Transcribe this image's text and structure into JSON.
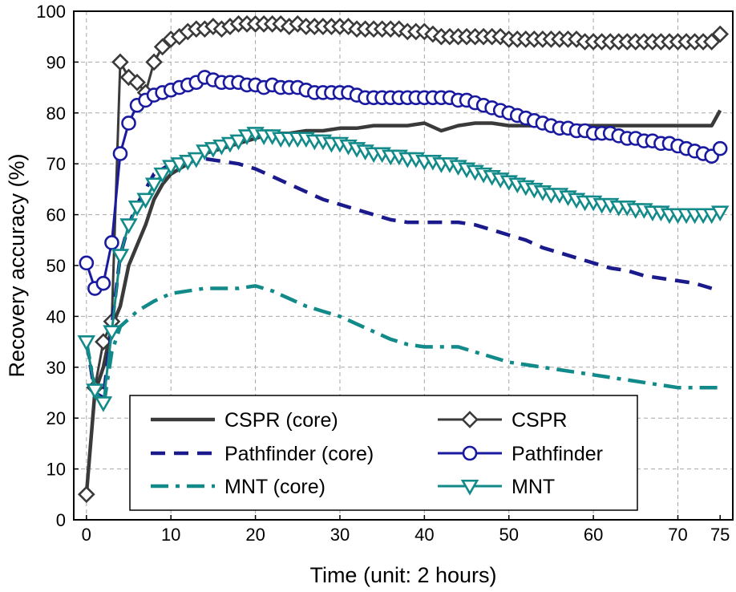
{
  "chart_data": {
    "type": "line",
    "title": "",
    "xlabel": "Time (unit: 2 hours)",
    "ylabel": "Recovery accuracy (%)",
    "xlim": [
      -1.5,
      76.5
    ],
    "ylim": [
      0,
      100
    ],
    "xticks": [
      0,
      10,
      20,
      30,
      40,
      50,
      60,
      70,
      75
    ],
    "yticks": [
      0,
      10,
      20,
      30,
      40,
      50,
      60,
      70,
      80,
      90,
      100
    ],
    "grid": true,
    "legend_position": "bottom-center",
    "series": [
      {
        "name": "CSPR (core)",
        "color": "#3a3a3a",
        "style": "solid",
        "marker": "none",
        "x": [
          0,
          1,
          2,
          3,
          4,
          5,
          6,
          7,
          8,
          9,
          10,
          12,
          14,
          16,
          18,
          20,
          22,
          24,
          26,
          28,
          30,
          32,
          34,
          36,
          38,
          40,
          42,
          44,
          46,
          48,
          50,
          52,
          54,
          56,
          58,
          60,
          62,
          64,
          66,
          68,
          70,
          72,
          74,
          75
        ],
        "y": [
          5,
          25,
          30,
          38,
          42,
          50,
          54,
          58,
          63,
          66,
          68,
          70,
          72,
          73,
          74,
          75,
          76,
          76,
          76.5,
          76.5,
          77,
          77,
          77.5,
          77.5,
          77.5,
          78,
          76.5,
          77.5,
          78,
          78,
          77.5,
          77.5,
          77.5,
          77.5,
          77.5,
          77.5,
          77.5,
          77.5,
          77.5,
          77.5,
          77.5,
          77.5,
          77.5,
          80.5
        ]
      },
      {
        "name": "CSPR",
        "color": "#3a3a3a",
        "style": "solid",
        "marker": "diamond",
        "x": [
          0,
          1,
          2,
          3,
          4,
          5,
          6,
          7,
          8,
          9,
          10,
          11,
          12,
          13,
          14,
          15,
          16,
          17,
          18,
          19,
          20,
          21,
          22,
          23,
          24,
          25,
          26,
          27,
          28,
          29,
          30,
          31,
          32,
          33,
          34,
          35,
          36,
          37,
          38,
          39,
          40,
          41,
          42,
          43,
          44,
          45,
          46,
          47,
          48,
          49,
          50,
          51,
          52,
          53,
          54,
          55,
          56,
          57,
          58,
          59,
          60,
          61,
          62,
          63,
          64,
          65,
          66,
          67,
          68,
          69,
          70,
          71,
          72,
          73,
          74,
          75
        ],
        "y": [
          5,
          26,
          35,
          39,
          90,
          87,
          86,
          84,
          90,
          93,
          94.5,
          95,
          96,
          96.5,
          96.5,
          97,
          96.5,
          97,
          97.5,
          97.5,
          97.5,
          97.5,
          97.5,
          97.5,
          97,
          97.5,
          97,
          97,
          97,
          97,
          97,
          97,
          96.5,
          96.5,
          96.5,
          96.5,
          96.5,
          96.5,
          96,
          96,
          96,
          95.5,
          95,
          95,
          95,
          95,
          95,
          95,
          95,
          95,
          94.5,
          94.5,
          94.5,
          94.5,
          94.5,
          94.5,
          94.5,
          94.5,
          94.5,
          94,
          94,
          94,
          94,
          94,
          94,
          94,
          94,
          94,
          94,
          94,
          94,
          94,
          94,
          94,
          94,
          95.5
        ]
      },
      {
        "name": "Pathfinder (core)",
        "color": "#1a1a8c",
        "style": "dashed",
        "marker": "none",
        "x": [
          0,
          1,
          2,
          3,
          4,
          5,
          6,
          7,
          8,
          9,
          10,
          12,
          14,
          16,
          18,
          20,
          22,
          24,
          26,
          28,
          30,
          32,
          34,
          36,
          38,
          40,
          42,
          44,
          46,
          48,
          50,
          52,
          54,
          56,
          58,
          60,
          62,
          64,
          66,
          68,
          70,
          72,
          74,
          75
        ],
        "y": [
          35,
          25,
          24,
          38,
          52,
          58,
          62,
          65,
          68,
          69,
          70,
          71,
          71,
          70.5,
          70,
          69,
          67.5,
          66,
          64.5,
          63,
          62,
          61,
          60,
          59,
          58.5,
          58.5,
          58.5,
          58.5,
          58,
          57,
          56,
          55,
          53.5,
          52.5,
          51.5,
          50.5,
          49.5,
          49,
          48,
          47.5,
          47,
          46.5,
          45.5,
          45
        ]
      },
      {
        "name": "Pathfinder",
        "color": "#1a1aa0",
        "style": "solid",
        "marker": "circle",
        "x": [
          0,
          1,
          2,
          3,
          4,
          5,
          6,
          7,
          8,
          9,
          10,
          11,
          12,
          13,
          14,
          15,
          16,
          17,
          18,
          19,
          20,
          21,
          22,
          23,
          24,
          25,
          26,
          27,
          28,
          29,
          30,
          31,
          32,
          33,
          34,
          35,
          36,
          37,
          38,
          39,
          40,
          41,
          42,
          43,
          44,
          45,
          46,
          47,
          48,
          49,
          50,
          51,
          52,
          53,
          54,
          55,
          56,
          57,
          58,
          59,
          60,
          61,
          62,
          63,
          64,
          65,
          66,
          67,
          68,
          69,
          70,
          71,
          72,
          73,
          74,
          75
        ],
        "y": [
          50.5,
          45.5,
          46.5,
          54.5,
          72,
          78,
          81.5,
          82.5,
          83.5,
          84,
          84.5,
          85,
          85.5,
          86,
          87,
          86.5,
          86,
          86,
          86,
          85.5,
          85.5,
          85,
          85.5,
          85,
          85,
          85,
          84.5,
          84,
          84,
          84,
          84,
          84,
          83.5,
          83,
          83,
          83,
          83,
          83,
          83,
          83,
          83,
          83,
          83,
          83,
          82.5,
          82.5,
          82,
          81.5,
          81,
          80.5,
          80,
          79.5,
          79,
          78.5,
          78,
          77.5,
          77,
          77,
          76.5,
          76.5,
          76,
          76,
          76,
          75.5,
          75,
          75,
          74.5,
          74.5,
          74,
          74,
          73.5,
          73,
          72.5,
          72,
          71.5,
          73
        ]
      },
      {
        "name": "MNT (core)",
        "color": "#138a8a",
        "style": "dashdot",
        "marker": "none",
        "x": [
          0,
          1,
          2,
          3,
          4,
          6,
          8,
          10,
          12,
          14,
          16,
          18,
          20,
          22,
          24,
          26,
          28,
          30,
          32,
          34,
          36,
          38,
          40,
          42,
          44,
          46,
          48,
          50,
          52,
          54,
          56,
          58,
          60,
          62,
          64,
          66,
          68,
          70,
          72,
          74,
          75
        ],
        "y": [
          35,
          26,
          22,
          33,
          38,
          41,
          43,
          44.5,
          45,
          45.5,
          45.5,
          45.5,
          46,
          45,
          43.5,
          42,
          41,
          40,
          38.5,
          37,
          35.5,
          34.5,
          34,
          34,
          34,
          33,
          32,
          31,
          30.5,
          30,
          29.5,
          29,
          28.5,
          28,
          27.5,
          27,
          26.5,
          26,
          26,
          26,
          26
        ]
      },
      {
        "name": "MNT",
        "color": "#138a8a",
        "style": "solid",
        "marker": "triangle-down",
        "x": [
          0,
          1,
          2,
          3,
          4,
          5,
          6,
          7,
          8,
          9,
          10,
          11,
          12,
          13,
          14,
          15,
          16,
          17,
          18,
          19,
          20,
          21,
          22,
          23,
          24,
          25,
          26,
          27,
          28,
          29,
          30,
          31,
          32,
          33,
          34,
          35,
          36,
          37,
          38,
          39,
          40,
          41,
          42,
          43,
          44,
          45,
          46,
          47,
          48,
          49,
          50,
          51,
          52,
          53,
          54,
          55,
          56,
          57,
          58,
          59,
          60,
          61,
          62,
          63,
          64,
          65,
          66,
          67,
          68,
          69,
          70,
          71,
          72,
          73,
          74,
          75
        ],
        "y": [
          35,
          25.5,
          23,
          37,
          52,
          58,
          61.5,
          63,
          66,
          68,
          69.5,
          70,
          70.5,
          71,
          72.5,
          73,
          73.5,
          74,
          74.5,
          75.5,
          76,
          75.5,
          75.5,
          75,
          75,
          75,
          75,
          74.5,
          74.5,
          74,
          74,
          73.5,
          73,
          72.5,
          72,
          72,
          71.5,
          71.5,
          71,
          71,
          70.5,
          70.5,
          70,
          70,
          69.5,
          69,
          68.5,
          68,
          67.5,
          67,
          66.5,
          66,
          65.5,
          65,
          64.5,
          64,
          64,
          63.5,
          63,
          62.5,
          62.5,
          62,
          62,
          61.5,
          61.5,
          61,
          61,
          60.5,
          60.5,
          60,
          60,
          60,
          60,
          60,
          60,
          60.5
        ]
      }
    ]
  }
}
